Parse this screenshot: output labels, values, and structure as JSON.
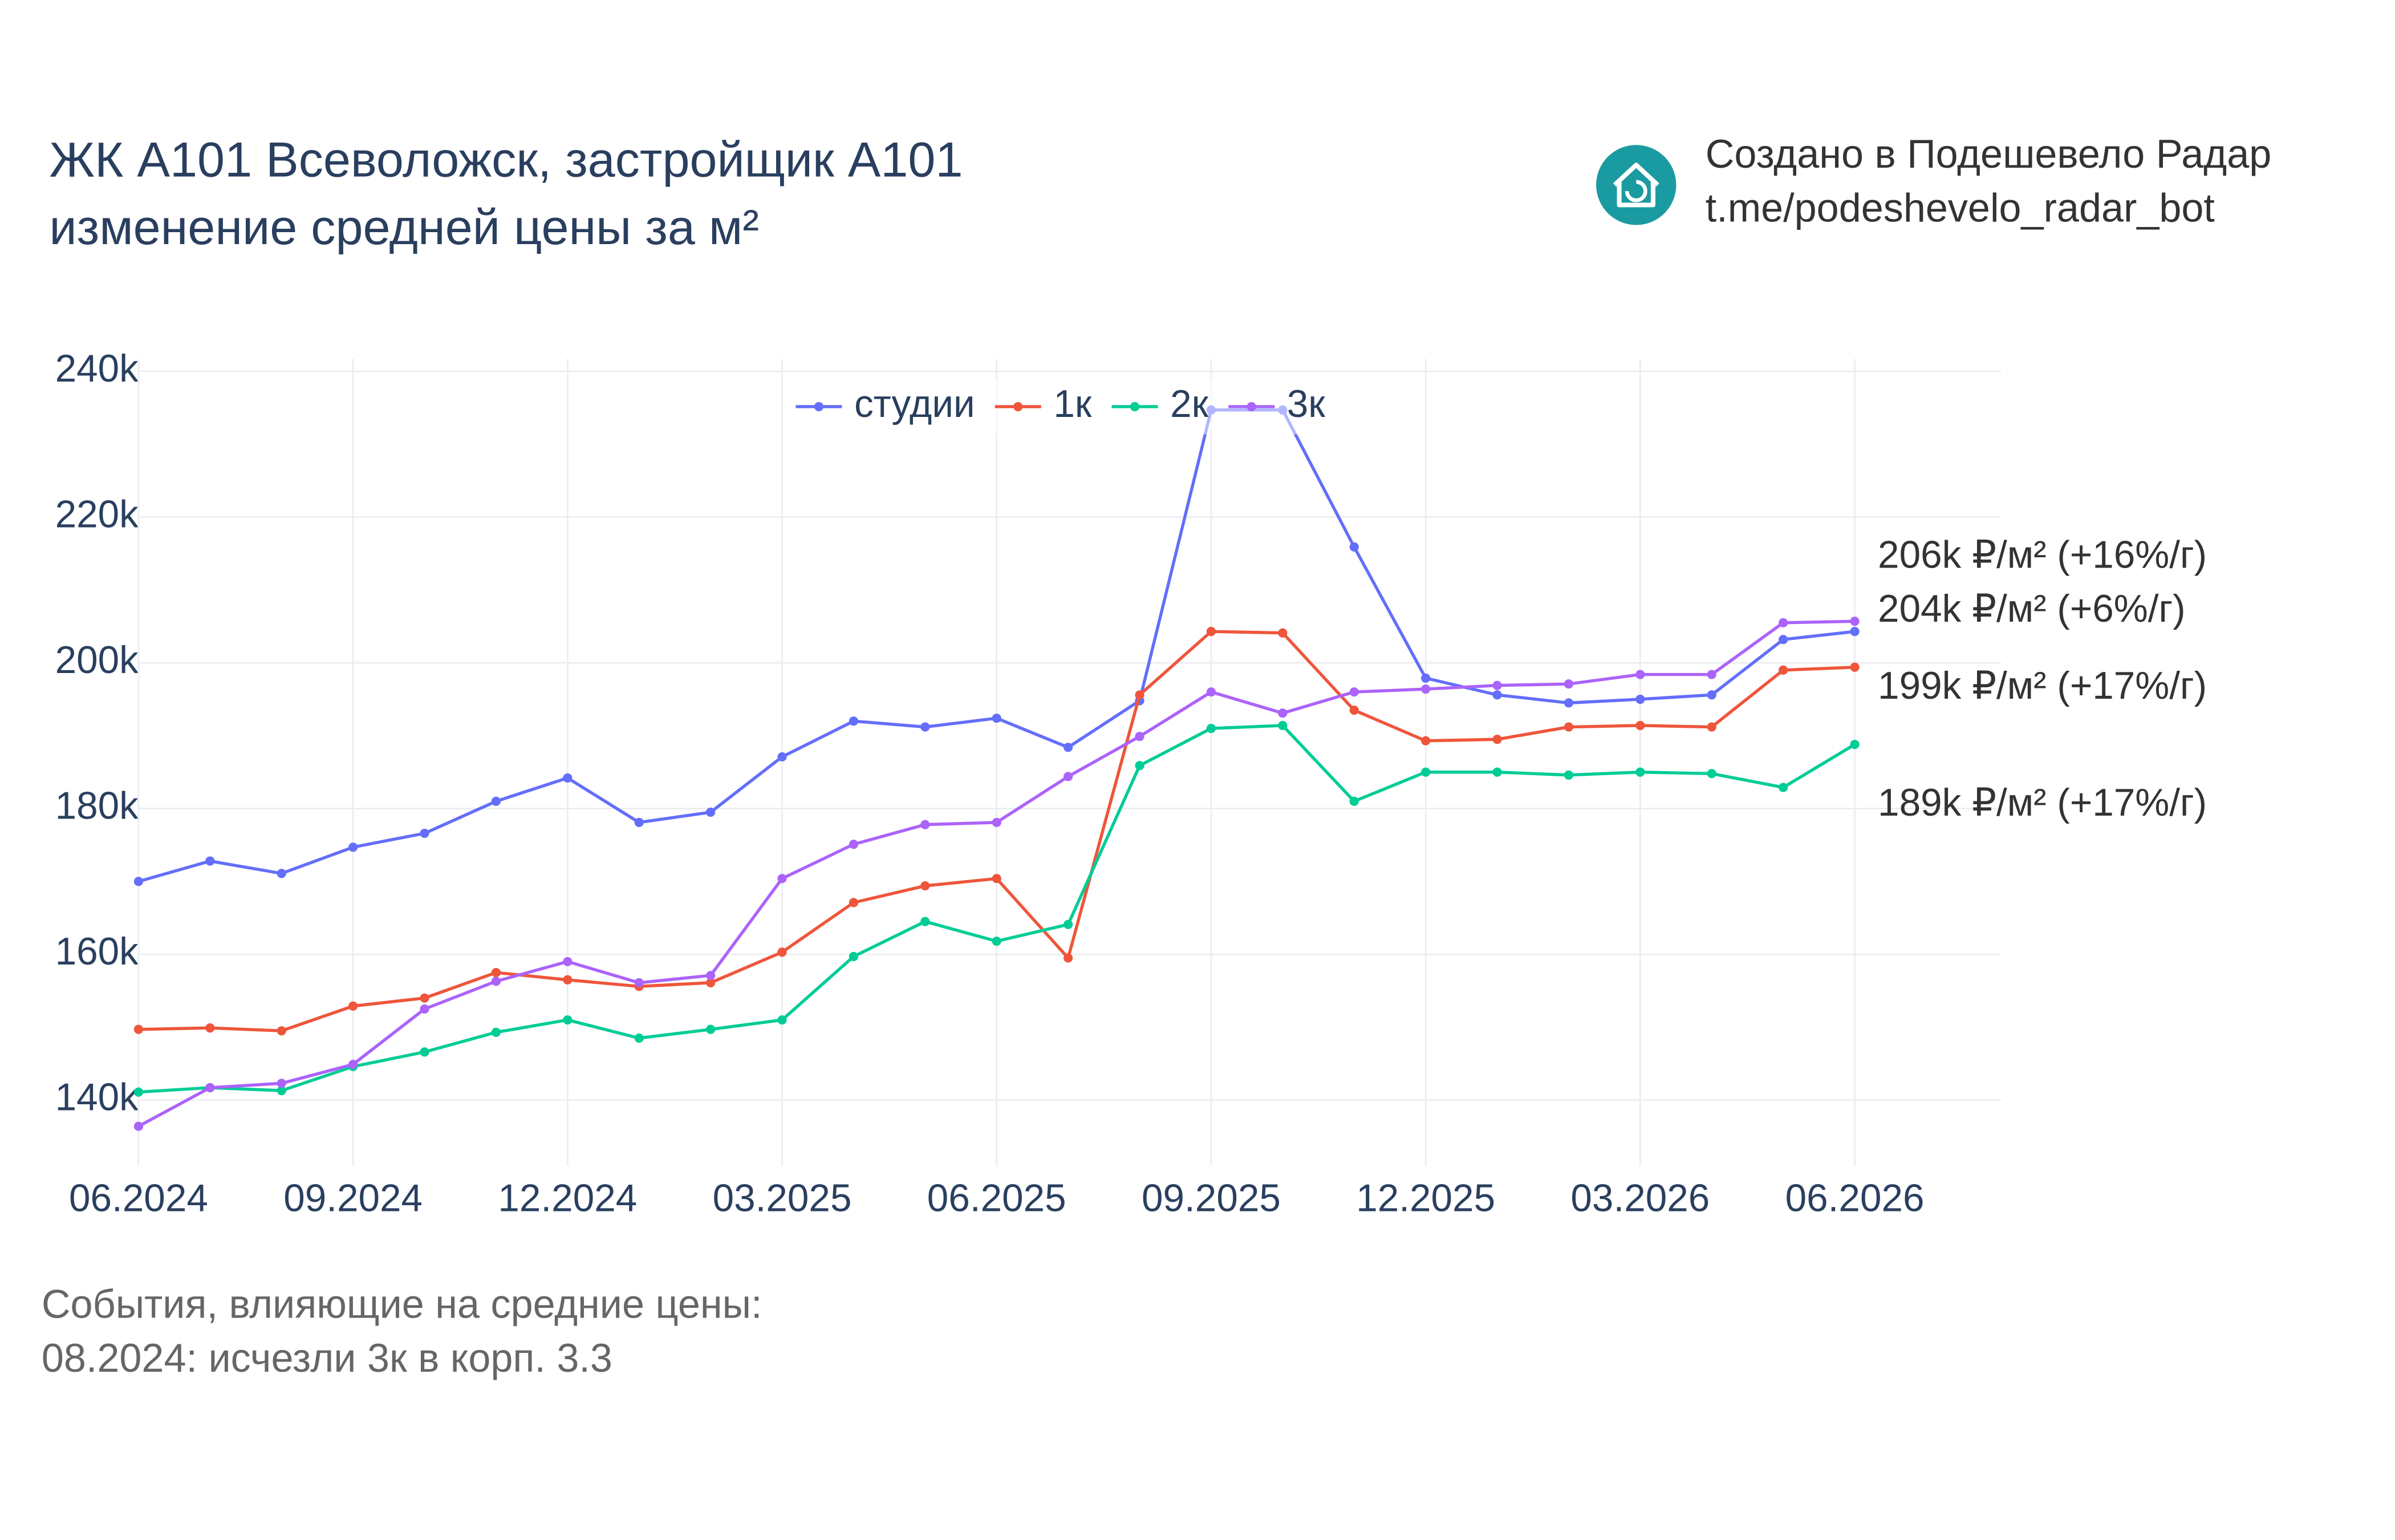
{
  "chart_data": {
    "type": "line",
    "title": "ЖК А101 Всеволожск, застройщик А101",
    "subtitle": "изменение средней цены за м²",
    "categories": [
      "06.2024",
      null,
      null,
      "09.2024",
      null,
      null,
      "12.2024",
      null,
      null,
      "03.2025",
      null,
      null,
      "06.2025",
      null,
      null,
      "09.2025",
      null,
      null,
      "12.2025",
      null,
      null,
      "03.2026",
      null,
      null,
      "06.2026"
    ],
    "series": [
      {
        "name": "студии",
        "color": "#636efa",
        "end_label": "204k ₽/м² (+6%/г)",
        "values": [
          170000,
          172800,
          171100,
          174700,
          176600,
          181000,
          184200,
          178100,
          179500,
          187100,
          192000,
          191200,
          192400,
          188400,
          194800,
          234700,
          234700,
          215900,
          197900,
          195600,
          194500,
          195000,
          195600,
          203200,
          204300
        ]
      },
      {
        "name": "1к",
        "color": "#ef553b",
        "end_label": "199k ₽/м² (+17%/г)",
        "values": [
          149700,
          149900,
          149500,
          152900,
          154000,
          157500,
          156500,
          155600,
          156100,
          160300,
          167100,
          169400,
          170400,
          159500,
          195600,
          204300,
          204100,
          193500,
          189300,
          189500,
          191200,
          191400,
          191200,
          199000,
          199400
        ]
      },
      {
        "name": "2к",
        "color": "#00cc96",
        "end_label": "189k ₽/м² (+17%/г)",
        "values": [
          141100,
          141700,
          141300,
          144600,
          146600,
          149300,
          151000,
          148500,
          149700,
          151000,
          159700,
          164500,
          161800,
          164100,
          185900,
          191000,
          191400,
          181000,
          185000,
          185000,
          184600,
          185000,
          184800,
          182900,
          188800
        ]
      },
      {
        "name": "3к",
        "color": "#ab63fa",
        "end_label": "206k ₽/м² (+16%/г)",
        "values": [
          136400,
          141700,
          142300,
          144900,
          152500,
          156300,
          159000,
          156100,
          157100,
          170400,
          175100,
          177800,
          178100,
          184400,
          189900,
          196000,
          193100,
          196000,
          196400,
          196900,
          197100,
          198400,
          198400,
          205500,
          205700
        ]
      }
    ],
    "ylim": [
      131000,
      241700
    ],
    "yticks": [
      {
        "value": 140000,
        "label": "140k"
      },
      {
        "value": 160000,
        "label": "160k"
      },
      {
        "value": 180000,
        "label": "180k"
      },
      {
        "value": 200000,
        "label": "200k"
      },
      {
        "value": 220000,
        "label": "220k"
      },
      {
        "value": 240000,
        "label": "240k"
      }
    ],
    "grid": true,
    "legend": "top"
  },
  "credit": [
    "Создано в Подешевело Радар",
    "t.me/podeshevelo_radar_bot"
  ],
  "notes": [
    "События, влияющие на средние цены:",
    "08.2024: исчезли 3к в корп. 3.3"
  ]
}
